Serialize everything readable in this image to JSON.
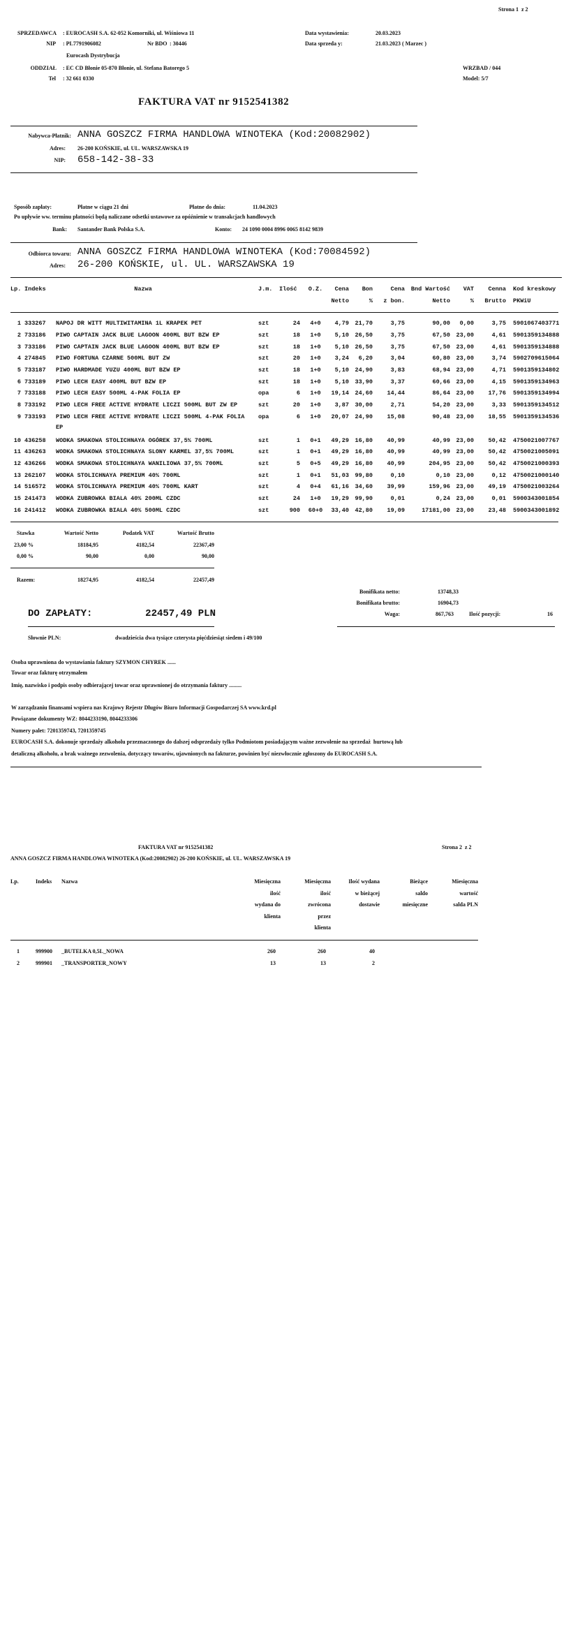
{
  "page1": {
    "page_label": "Strona 1  z 2",
    "seller": {
      "label": "SPRZEDAWCA",
      "value": ": EUROCASH S.A. 62-052 Komorniki, ul. Wiśniowa 11",
      "nip_label": "NIP",
      "nip_value": ": PL7791906082",
      "bdo_label": "Nr BDO",
      "bdo_value": ": 30446",
      "division_name": "Eurocash Dystrybucja",
      "branch_label": "ODDZIAŁ",
      "branch_value": ": EC CD Błonie 05-870 Błonie, ul. Stefana Batorego 5",
      "tel_label": "Tel",
      "tel_value": ": 32 661 0330"
    },
    "dates": {
      "issue_label": "Data wystawienia:",
      "issue_value": "20.03.2023",
      "sale_label": "Data sprzeda y:",
      "sale_value": "21.03.2023 ( Marzec )"
    },
    "route": "WRZBAD / 044",
    "model": "Model: 5/7",
    "invoice_title": "FAKTURA VAT nr 9152541382",
    "buyer": {
      "label": "Nabywca-Płatnik:",
      "name": "ANNA GOSZCZ FIRMA HANDLOWA WINOTEKA (Kod:20082902)",
      "address_label": "Adres:",
      "address": "26-200 KOŃSKIE, ul. UL. WARSZAWSKA 19",
      "nip_label": "NIP:",
      "nip": "658-142-38-33"
    },
    "payment": {
      "method_label": "Sposób zapłaty:",
      "method_value": "Płatne w ciągu 21 dni",
      "due_label": "Płatne do dnia:",
      "due_value": "11.04.2023",
      "notice": "Po upływie ww. terminu płatności będą naliczane odsetki ustawowe za opóźnienie w transakcjach handlowych",
      "bank_label": "Bank:",
      "bank_value": "Santander Bank Polska S.A.",
      "account_label": "Konto:",
      "account_value": "24 1090 0004 8996 0065 8142 9839"
    },
    "recipient": {
      "label": "Odbiorca towaru:",
      "name": "ANNA GOSZCZ FIRMA HANDLOWA WINOTEKA (Kod:70084592)",
      "address_label": "Adres:",
      "address": "26-200 KOŃSKIE, ul. UL. WARSZAWSKA 19"
    },
    "table": {
      "headers_row1": {
        "lp": "Lp.",
        "indeks": "Indeks",
        "nazwa": "Nazwa",
        "jm": "J.m.",
        "ilosc": "Ilość",
        "oz": "O.Z.",
        "cena_netto": "Cena",
        "bon": "Bon",
        "cena_z_bon": "Cena",
        "wartosc_netto": "Bnd Wartość",
        "vat": "VAT",
        "cena_brutto": "Cenna",
        "ean": "Kod kreskowy"
      },
      "headers_row2": {
        "cena_netto": "Netto",
        "bon": "%",
        "cena_z_bon": "z bon.",
        "wartosc_netto": "Netto",
        "vat": "%",
        "cena_brutto": "Brutto",
        "ean": "PKWiU"
      },
      "rows": [
        {
          "lp": "1",
          "indeks": "333267",
          "nazwa": "NAPOJ DR WITT MULTIWITAMINA 1L KRAPEK PET",
          "jm": "szt",
          "ilosc": "24",
          "oz": "4+0",
          "cena_netto": "4,79",
          "bon": "21,70",
          "cena_z_bon": "3,75",
          "wartosc_netto": "90,00",
          "vat": "0,00",
          "cena_brutto": "3,75",
          "ean": "5901067403771"
        },
        {
          "lp": "2",
          "indeks": "733186",
          "nazwa": "PIWO CAPTAIN JACK BLUE LAGOON 400ML BUT BZW EP",
          "jm": "szt",
          "ilosc": "18",
          "oz": "1+0",
          "cena_netto": "5,10",
          "bon": "26,50",
          "cena_z_bon": "3,75",
          "wartosc_netto": "67,50",
          "vat": "23,00",
          "cena_brutto": "4,61",
          "ean": "5901359134888"
        },
        {
          "lp": "3",
          "indeks": "733186",
          "nazwa": "PIWO CAPTAIN JACK BLUE LAGOON 400ML BUT BZW EP",
          "jm": "szt",
          "ilosc": "18",
          "oz": "1+0",
          "cena_netto": "5,10",
          "bon": "26,50",
          "cena_z_bon": "3,75",
          "wartosc_netto": "67,50",
          "vat": "23,00",
          "cena_brutto": "4,61",
          "ean": "5901359134888"
        },
        {
          "lp": "4",
          "indeks": "274845",
          "nazwa": "PIWO FORTUNA CZARNE 500ML BUT ZW",
          "jm": "szt",
          "ilosc": "20",
          "oz": "1+0",
          "cena_netto": "3,24",
          "bon": "6,20",
          "cena_z_bon": "3,04",
          "wartosc_netto": "60,80",
          "vat": "23,00",
          "cena_brutto": "3,74",
          "ean": "5902709615064"
        },
        {
          "lp": "5",
          "indeks": "733187",
          "nazwa": "PIWO HARDMADE YUZU 400ML BUT BZW EP",
          "jm": "szt",
          "ilosc": "18",
          "oz": "1+0",
          "cena_netto": "5,10",
          "bon": "24,90",
          "cena_z_bon": "3,83",
          "wartosc_netto": "68,94",
          "vat": "23,00",
          "cena_brutto": "4,71",
          "ean": "5901359134802"
        },
        {
          "lp": "6",
          "indeks": "733189",
          "nazwa": "PIWO LECH EASY 400ML BUT BZW EP",
          "jm": "szt",
          "ilosc": "18",
          "oz": "1+0",
          "cena_netto": "5,10",
          "bon": "33,90",
          "cena_z_bon": "3,37",
          "wartosc_netto": "60,66",
          "vat": "23,00",
          "cena_brutto": "4,15",
          "ean": "5901359134963"
        },
        {
          "lp": "7",
          "indeks": "733188",
          "nazwa": "PIWO LECH EASY 500ML 4-PAK FOLIA EP",
          "jm": "opa",
          "ilosc": "6",
          "oz": "1+0",
          "cena_netto": "19,14",
          "bon": "24,60",
          "cena_z_bon": "14,44",
          "wartosc_netto": "86,64",
          "vat": "23,00",
          "cena_brutto": "17,76",
          "ean": "5901359134994"
        },
        {
          "lp": "8",
          "indeks": "733192",
          "nazwa": "PIWO LECH FREE ACTIVE HYDRATE LICZI 500ML BUT ZW EP",
          "jm": "szt",
          "ilosc": "20",
          "oz": "1+0",
          "cena_netto": "3,87",
          "bon": "30,00",
          "cena_z_bon": "2,71",
          "wartosc_netto": "54,20",
          "vat": "23,00",
          "cena_brutto": "3,33",
          "ean": "5901359134512"
        },
        {
          "lp": "9",
          "indeks": "733193",
          "nazwa": "PIWO LECH FREE ACTIVE HYDRATE LICZI 500ML 4-PAK FOLIA",
          "nazwa_cont": "EP",
          "jm": "opa",
          "ilosc": "6",
          "oz": "1+0",
          "cena_netto": "20,07",
          "bon": "24,90",
          "cena_z_bon": "15,08",
          "wartosc_netto": "90,48",
          "vat": "23,00",
          "cena_brutto": "18,55",
          "ean": "5901359134536"
        },
        {
          "lp": "10",
          "indeks": "436258",
          "nazwa": "WODKA SMAKOWA STOLICHNAYA OGÓREK 37,5% 700ML",
          "jm": "szt",
          "ilosc": "1",
          "oz": "0+1",
          "cena_netto": "49,29",
          "bon": "16,80",
          "cena_z_bon": "40,99",
          "wartosc_netto": "40,99",
          "vat": "23,00",
          "cena_brutto": "50,42",
          "ean": "4750021007767"
        },
        {
          "lp": "11",
          "indeks": "436263",
          "nazwa": "WODKA SMAKOWA STOLICHNAYA SLONY KARMEL 37,5% 700ML",
          "jm": "szt",
          "ilosc": "1",
          "oz": "0+1",
          "cena_netto": "49,29",
          "bon": "16,80",
          "cena_z_bon": "40,99",
          "wartosc_netto": "40,99",
          "vat": "23,00",
          "cena_brutto": "50,42",
          "ean": "4750021005091"
        },
        {
          "lp": "12",
          "indeks": "436266",
          "nazwa": "WODKA SMAKOWA STOLICHNAYA WANILIOWA 37,5% 700ML",
          "jm": "szt",
          "ilosc": "5",
          "oz": "0+5",
          "cena_netto": "49,29",
          "bon": "16,80",
          "cena_z_bon": "40,99",
          "wartosc_netto": "204,95",
          "vat": "23,00",
          "cena_brutto": "50,42",
          "ean": "4750021000393"
        },
        {
          "lp": "13",
          "indeks": "262107",
          "nazwa": "WODKA STOLICHNAYA PREMIUM 40% 700ML",
          "jm": "szt",
          "ilosc": "1",
          "oz": "0+1",
          "cena_netto": "51,03",
          "bon": "99,80",
          "cena_z_bon": "0,10",
          "wartosc_netto": "0,10",
          "vat": "23,00",
          "cena_brutto": "0,12",
          "ean": "4750021000140"
        },
        {
          "lp": "14",
          "indeks": "516572",
          "nazwa": "WODKA STOLICHNAYA PREMIUM 40% 700ML KART",
          "jm": "szt",
          "ilosc": "4",
          "oz": "0+4",
          "cena_netto": "61,16",
          "bon": "34,60",
          "cena_z_bon": "39,99",
          "wartosc_netto": "159,96",
          "vat": "23,00",
          "cena_brutto": "49,19",
          "ean": "4750021003264"
        },
        {
          "lp": "15",
          "indeks": "241473",
          "nazwa": "WODKA ZUBROWKA BIALA 40% 200ML CZDC",
          "jm": "szt",
          "ilosc": "24",
          "oz": "1+0",
          "cena_netto": "19,29",
          "bon": "99,90",
          "cena_z_bon": "0,01",
          "wartosc_netto": "0,24",
          "vat": "23,00",
          "cena_brutto": "0,01",
          "ean": "5900343001854"
        },
        {
          "lp": "16",
          "indeks": "241412",
          "nazwa": "WODKA ZUBROWKA BIALA 40% 500ML CZDC",
          "jm": "szt",
          "ilosc": "900",
          "oz": "60+0",
          "cena_netto": "33,40",
          "bon": "42,80",
          "cena_z_bon": "19,09",
          "wartosc_netto": "17181,00",
          "vat": "23,00",
          "cena_brutto": "23,48",
          "ean": "5900343001892"
        }
      ]
    },
    "vat_summary": {
      "headers": [
        "Stawka",
        "Wartość Netto",
        "Podatek VAT",
        "Wartość Brutto"
      ],
      "rows": [
        [
          "23,00 %",
          "18184,95",
          "4182,54",
          "22367,49"
        ],
        [
          "0,00 %",
          "90,00",
          "0,00",
          "90,00"
        ]
      ],
      "total_label": "Razem:",
      "total": [
        "18274,95",
        "4182,54",
        "22457,49"
      ]
    },
    "bonus": {
      "netto_label": "Bonifikata netto:",
      "netto_value": "13748,33",
      "brutto_label": "Bonifikata brutto:",
      "brutto_value": "16904,73",
      "weight_label": "Waga:",
      "weight_value": "867,763",
      "positions_label": "Ilość pozycji:",
      "positions_value": "16"
    },
    "to_pay_label": "DO ZAPŁATY:",
    "to_pay_value": "22457,49 PLN",
    "in_words_label": "Słownie PLN:",
    "in_words_value": "dwadzieścia dwa tysiące czterysta pięćdziesiąt siedem i 49/100",
    "footer_lines": [
      "Osoba uprawniona do wystawiania faktury SZYMON CHYREK ......",
      "Towar oraz fakturę otrzymałem",
      "Imię, nazwisko i podpis osoby odbierającej towar oraz uprawnionej do otrzymania faktury .........",
      "W zarządzaniu finansami wspiera nas Krajowy Rejestr Długów Biuro Informacji Gospodarczej SA www.krd.pl",
      "Powiązane dokumenty WZ: 8044233190, 8044233306",
      "Numery palet: 7201359743, 7201359745",
      "EUROCASH S.A. dokonuje sprzedaży alkoholu przeznaczonego do dalszej odsprzedaży tylko Podmiotom posiadającym ważne zezwolenie na sprzedaż  hurtową lub",
      "detaliczną alkoholu, a brak ważnego zezwolenia, dotyczący towarów, ujawnionych na fakturze, powinien być niezwłocznie zgłoszony do EUROCASH S.A."
    ]
  },
  "page2": {
    "invoice_title": "FAKTURA VAT nr 9152541382",
    "page_label": "Strona 2  z 2",
    "client_line": "ANNA GOSZCZ FIRMA HANDLOWA WINOTEKA (Kod:20082902) 26-200 KOŃSKIE, ul. UL. WARSZAWSKA 19",
    "headers": {
      "lp": "Lp.",
      "indeks": "Indeks",
      "nazwa": "Nazwa",
      "col1": [
        "Miesięczna",
        "ilość",
        "wydana do",
        "klienta"
      ],
      "col2": [
        "Miesięczna",
        "ilość",
        "zwrócona",
        "przez",
        "klienta"
      ],
      "col3": [
        "Ilość wydana",
        "w bieżącej",
        "dostawie"
      ],
      "col4": [
        "Bieżące",
        "saldo",
        "miesięczne"
      ],
      "col5": [
        "Miesięczna",
        "wartość",
        "salda PLN"
      ]
    },
    "rows": [
      {
        "lp": "1",
        "indeks": "999900",
        "nazwa": "_BUTELKA 0,5L_NOWA",
        "col1": "260",
        "col2": "260",
        "col3": "40"
      },
      {
        "lp": "2",
        "indeks": "999901",
        "nazwa": "_TRANSPORTER_NOWY",
        "col1": "13",
        "col2": "13",
        "col3": "2"
      }
    ]
  }
}
